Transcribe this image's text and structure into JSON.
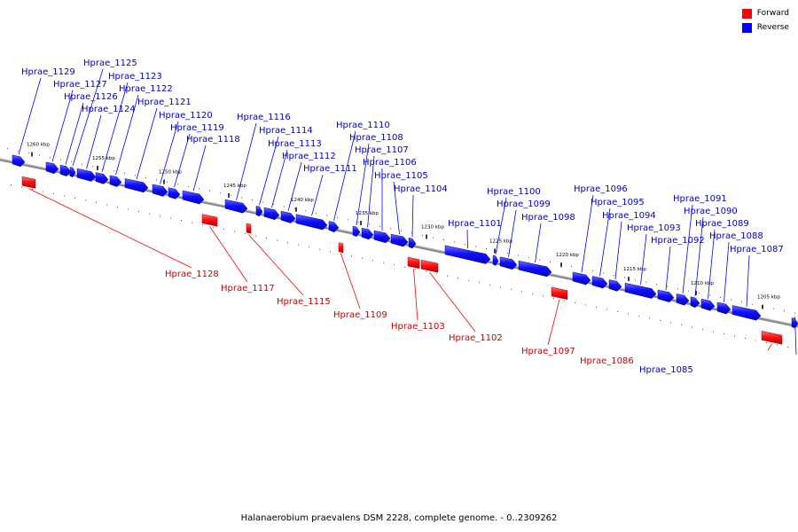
{
  "legend": {
    "forward_label": "Forward",
    "reverse_label": "Reverse",
    "forward_color": "#ff0000",
    "reverse_color": "#0000ff"
  },
  "caption": "Halanaerobium praevalens DSM 2228, complete genome. - 0..2309262",
  "ticks": [
    "1260 kbp",
    "1255 kbp",
    "1250 kbp",
    "1245 kbp",
    "1240 kbp",
    "1235 kbp",
    "1230 kbp",
    "1225 kbp",
    "1220 kbp",
    "1215 kbp",
    "1210 kbp",
    "1205 kbp"
  ],
  "reverse_genes": [
    "Hprae_1129",
    "Hprae_1127",
    "Hprae_1126",
    "Hprae_1125",
    "Hprae_1124",
    "Hprae_1123",
    "Hprae_1122",
    "Hprae_1121",
    "Hprae_1120",
    "Hprae_1119",
    "Hprae_1118",
    "Hprae_1116",
    "Hprae_1114",
    "Hprae_1113",
    "Hprae_1112",
    "Hprae_1111",
    "Hprae_1110",
    "Hprae_1108",
    "Hprae_1107",
    "Hprae_1106",
    "Hprae_1105",
    "Hprae_1104",
    "Hprae_1101",
    "Hprae_1100",
    "Hprae_1099",
    "Hprae_1098",
    "Hprae_1096",
    "Hprae_1095",
    "Hprae_1094",
    "Hprae_1093",
    "Hprae_1092",
    "Hprae_1091",
    "Hprae_1090",
    "Hprae_1089",
    "Hprae_1088",
    "Hprae_1087",
    "Hprae_1085"
  ],
  "forward_genes": [
    "Hprae_1128",
    "Hprae_1117",
    "Hprae_1115",
    "Hprae_1109",
    "Hprae_1103",
    "Hprae_1102",
    "Hprae_1097",
    "Hprae_1086"
  ]
}
